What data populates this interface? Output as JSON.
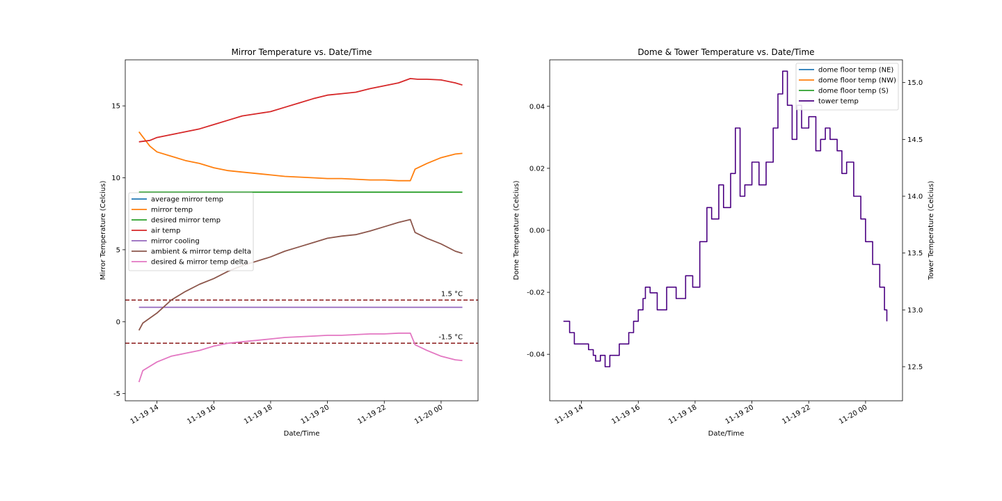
{
  "chart_data": [
    {
      "type": "line",
      "title": "Mirror Temperature vs. Date/Time",
      "xlabel": "Date/Time",
      "ylabel": "Mirror Temperature (Celcius)",
      "x_ticks": [
        "11-19 14",
        "11-19 16",
        "11-19 18",
        "11-19 20",
        "11-19 22",
        "11-20 00"
      ],
      "xlim": [
        "11-19 12:53",
        "11-20 01:18"
      ],
      "ylim": [
        -5.5,
        18.2
      ],
      "y_ticks": [
        -5,
        0,
        5,
        10,
        15
      ],
      "grid": false,
      "legend_position": "center-left",
      "series": [
        {
          "name": "average mirror temp",
          "color": "#1f77b4",
          "x": [],
          "y": []
        },
        {
          "name": "mirror temp",
          "color": "#ff7f0e",
          "x": [
            "11-19 13:22",
            "11-19 13:45",
            "11-19 14:00",
            "11-19 14:30",
            "11-19 15:00",
            "11-19 15:30",
            "11-19 16:00",
            "11-19 16:30",
            "11-19 17:00",
            "11-19 17:30",
            "11-19 18:00",
            "11-19 18:30",
            "11-19 19:00",
            "11-19 19:30",
            "11-19 20:00",
            "11-19 20:30",
            "11-19 21:00",
            "11-19 21:30",
            "11-19 22:00",
            "11-19 22:30",
            "11-19 22:55",
            "11-19 23:05",
            "11-19 23:30",
            "11-20 00:00",
            "11-20 00:30",
            "11-20 00:45"
          ],
          "y": [
            13.2,
            12.2,
            11.8,
            11.5,
            11.2,
            11.0,
            10.7,
            10.5,
            10.4,
            10.3,
            10.2,
            10.1,
            10.05,
            10.0,
            9.95,
            9.95,
            9.9,
            9.85,
            9.85,
            9.8,
            9.8,
            10.6,
            11.0,
            11.4,
            11.65,
            11.7
          ]
        },
        {
          "name": "desired mirror temp",
          "color": "#2ca02c",
          "x": [
            "11-19 13:22",
            "11-20 00:45"
          ],
          "y": [
            9.0,
            9.0
          ]
        },
        {
          "name": "air temp",
          "color": "#d62728",
          "x": [
            "11-19 13:22",
            "11-19 13:45",
            "11-19 14:00",
            "11-19 14:30",
            "11-19 15:00",
            "11-19 15:30",
            "11-19 16:00",
            "11-19 16:30",
            "11-19 17:00",
            "11-19 17:30",
            "11-19 18:00",
            "11-19 18:30",
            "11-19 19:00",
            "11-19 19:30",
            "11-19 20:00",
            "11-19 20:30",
            "11-19 21:00",
            "11-19 21:30",
            "11-19 22:00",
            "11-19 22:30",
            "11-19 22:55",
            "11-19 23:10",
            "11-19 23:30",
            "11-20 00:00",
            "11-20 00:30",
            "11-20 00:45"
          ],
          "y": [
            12.5,
            12.6,
            12.8,
            13.0,
            13.2,
            13.4,
            13.7,
            14.0,
            14.3,
            14.45,
            14.6,
            14.9,
            15.2,
            15.5,
            15.75,
            15.85,
            15.95,
            16.2,
            16.4,
            16.6,
            16.9,
            16.85,
            16.85,
            16.8,
            16.6,
            16.45
          ]
        },
        {
          "name": "mirror cooling",
          "color": "#9467bd",
          "x": [
            "11-19 13:22",
            "11-20 00:45"
          ],
          "y": [
            1.0,
            1.0
          ]
        },
        {
          "name": "ambient & mirror temp delta",
          "color": "#8c564b",
          "x": [
            "11-19 13:22",
            "11-19 13:30",
            "11-19 14:00",
            "11-19 14:30",
            "11-19 15:00",
            "11-19 15:30",
            "11-19 16:00",
            "11-19 16:30",
            "11-19 17:00",
            "11-19 17:30",
            "11-19 18:00",
            "11-19 18:30",
            "11-19 19:00",
            "11-19 19:30",
            "11-19 20:00",
            "11-19 20:30",
            "11-19 21:00",
            "11-19 21:30",
            "11-19 22:00",
            "11-19 22:30",
            "11-19 22:55",
            "11-19 23:05",
            "11-19 23:30",
            "11-20 00:00",
            "11-20 00:30",
            "11-20 00:45"
          ],
          "y": [
            -0.6,
            -0.1,
            0.6,
            1.5,
            2.1,
            2.6,
            3.0,
            3.5,
            3.9,
            4.2,
            4.5,
            4.9,
            5.2,
            5.5,
            5.8,
            5.95,
            6.05,
            6.3,
            6.6,
            6.9,
            7.1,
            6.2,
            5.8,
            5.4,
            4.9,
            4.75
          ]
        },
        {
          "name": "desired & mirror temp delta",
          "color": "#e377c2",
          "x": [
            "11-19 13:22",
            "11-19 13:30",
            "11-19 14:00",
            "11-19 14:30",
            "11-19 15:00",
            "11-19 15:30",
            "11-19 16:00",
            "11-19 16:30",
            "11-19 17:00",
            "11-19 17:30",
            "11-19 18:00",
            "11-19 18:30",
            "11-19 19:00",
            "11-19 19:30",
            "11-19 20:00",
            "11-19 20:30",
            "11-19 21:00",
            "11-19 21:30",
            "11-19 22:00",
            "11-19 22:30",
            "11-19 22:55",
            "11-19 23:05",
            "11-19 23:30",
            "11-20 00:00",
            "11-20 00:30",
            "11-20 00:45"
          ],
          "y": [
            -4.2,
            -3.4,
            -2.8,
            -2.4,
            -2.2,
            -2.0,
            -1.7,
            -1.5,
            -1.4,
            -1.3,
            -1.2,
            -1.1,
            -1.05,
            -1.0,
            -0.95,
            -0.95,
            -0.9,
            -0.85,
            -0.85,
            -0.8,
            -0.8,
            -1.6,
            -2.0,
            -2.4,
            -2.65,
            -2.7
          ]
        }
      ],
      "reference_lines": [
        {
          "y": 1.5,
          "label": "1.5 °C",
          "color": "#8b1a1a",
          "style": "dashed"
        },
        {
          "y": -1.5,
          "label": "-1.5 °C",
          "color": "#8b1a1a",
          "style": "dashed"
        }
      ]
    },
    {
      "type": "line",
      "title": "Dome & Tower Temperature vs. Date/Time",
      "xlabel": "Date/Time",
      "ylabel": "Dome Temperature (Celcius)",
      "y2label": "Tower Temperature (Celcius)",
      "x_ticks": [
        "11-19 14",
        "11-19 16",
        "11-19 18",
        "11-19 20",
        "11-19 22",
        "11-20 00"
      ],
      "xlim": [
        "11-19 12:53",
        "11-20 01:18"
      ],
      "ylim": [
        -0.055,
        0.055
      ],
      "y_ticks": [
        -0.04,
        -0.02,
        0.0,
        0.02,
        0.04
      ],
      "y2lim": [
        12.2,
        15.2
      ],
      "y2_ticks": [
        12.5,
        13.0,
        13.5,
        14.0,
        14.5,
        15.0
      ],
      "grid": false,
      "legend_position": "top-right",
      "series": [
        {
          "name": "dome floor temp (NE)",
          "color": "#1f77b4",
          "x": [],
          "y": []
        },
        {
          "name": "dome floor temp (NW)",
          "color": "#ff7f0e",
          "x": [],
          "y": []
        },
        {
          "name": "dome floor temp (S)",
          "color": "#2ca02c",
          "x": [],
          "y": []
        },
        {
          "name": "tower temp",
          "color": "#4b0082",
          "axis": "right",
          "step": true,
          "x": [
            "11-19 13:22",
            "11-19 13:35",
            "11-19 13:45",
            "11-19 14:00",
            "11-19 14:15",
            "11-19 14:25",
            "11-19 14:30",
            "11-19 14:40",
            "11-19 14:50",
            "11-19 15:00",
            "11-19 15:20",
            "11-19 15:40",
            "11-19 15:50",
            "11-19 16:00",
            "11-19 16:10",
            "11-19 16:15",
            "11-19 16:25",
            "11-19 16:40",
            "11-19 17:00",
            "11-19 17:20",
            "11-19 17:40",
            "11-19 17:55",
            "11-19 18:10",
            "11-19 18:25",
            "11-19 18:35",
            "11-19 18:50",
            "11-19 19:00",
            "11-19 19:15",
            "11-19 19:25",
            "11-19 19:35",
            "11-19 19:45",
            "11-19 20:00",
            "11-19 20:15",
            "11-19 20:30",
            "11-19 20:45",
            "11-19 20:55",
            "11-19 21:05",
            "11-19 21:15",
            "11-19 21:25",
            "11-19 21:35",
            "11-19 21:45",
            "11-19 22:00",
            "11-19 22:15",
            "11-19 22:25",
            "11-19 22:35",
            "11-19 22:45",
            "11-19 23:00",
            "11-19 23:10",
            "11-19 23:20",
            "11-19 23:35",
            "11-19 23:50",
            "11-20 00:00",
            "11-20 00:15",
            "11-20 00:30",
            "11-20 00:40",
            "11-20 00:45"
          ],
          "y": [
            12.9,
            12.8,
            12.7,
            12.7,
            12.65,
            12.6,
            12.55,
            12.6,
            12.5,
            12.6,
            12.7,
            12.8,
            12.9,
            13.0,
            13.1,
            13.2,
            13.15,
            13.0,
            13.2,
            13.1,
            13.3,
            13.2,
            13.6,
            13.9,
            13.8,
            14.1,
            13.9,
            14.2,
            14.6,
            14.0,
            14.1,
            14.3,
            14.1,
            14.3,
            14.6,
            14.9,
            15.1,
            14.8,
            14.5,
            14.8,
            14.6,
            14.7,
            14.4,
            14.5,
            14.6,
            14.5,
            14.4,
            14.2,
            14.3,
            14.0,
            13.8,
            13.6,
            13.4,
            13.2,
            13.0,
            12.9
          ]
        }
      ]
    }
  ]
}
